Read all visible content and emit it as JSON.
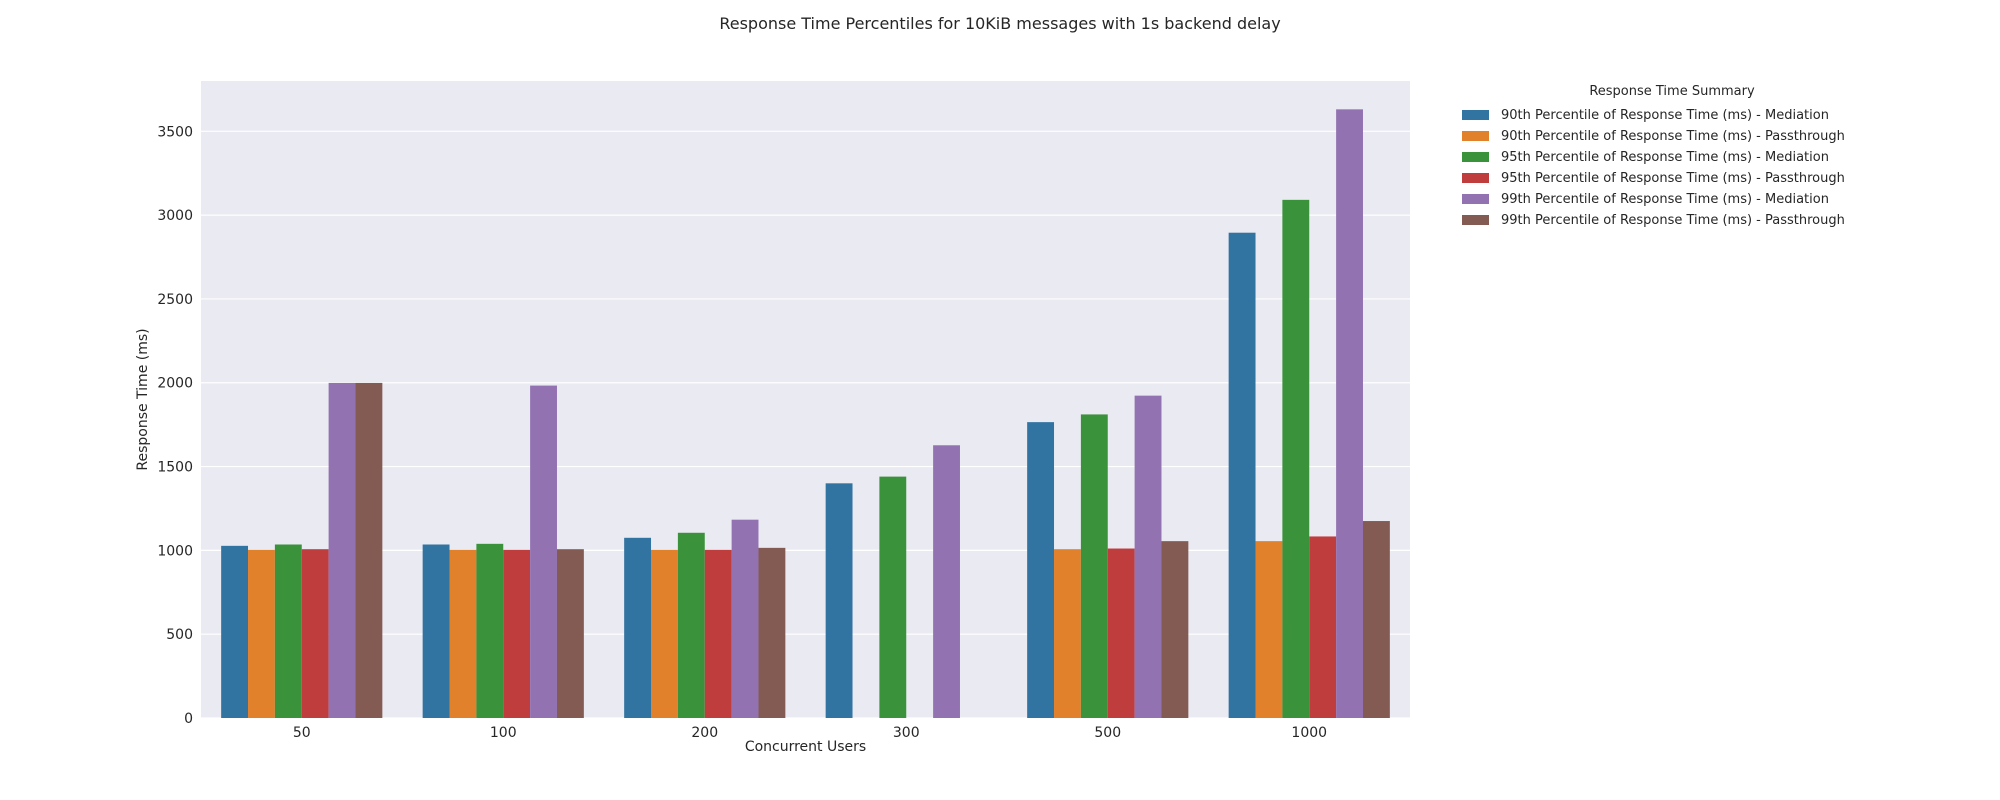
{
  "chart_data": {
    "type": "bar",
    "title": "Response Time Percentiles for 10KiB messages with 1s backend delay",
    "xlabel": "Concurrent Users",
    "ylabel": "Response Time (ms)",
    "ylim": [
      0,
      3800
    ],
    "yticks": [
      0,
      500,
      1000,
      1500,
      2000,
      2500,
      3000,
      3500
    ],
    "grid": true,
    "legend_title": "Response Time Summary",
    "legend_position": "outside-right",
    "categories": [
      "50",
      "100",
      "200",
      "300",
      "500",
      "1000"
    ],
    "series": [
      {
        "name": "90th Percentile of Response Time (ms) - Mediation",
        "color": "#3274a1",
        "values": [
          1027,
          1035,
          1075,
          1400,
          1765,
          2895
        ]
      },
      {
        "name": "90th Percentile of Response Time (ms) - Passthrough",
        "color": "#e1812c",
        "values": [
          1003,
          1003,
          1003,
          null,
          1007,
          1055
        ]
      },
      {
        "name": "95th Percentile of Response Time (ms) - Mediation",
        "color": "#3a923a",
        "values": [
          1035,
          1039,
          1105,
          1440,
          1811,
          3091
        ]
      },
      {
        "name": "95th Percentile of Response Time (ms) - Passthrough",
        "color": "#c03d3e",
        "values": [
          1007,
          1003,
          1003,
          null,
          1011,
          1083
        ]
      },
      {
        "name": "99th Percentile of Response Time (ms) - Mediation",
        "color": "#9372b2",
        "values": [
          1999,
          1983,
          1183,
          1627,
          1923,
          3631
        ]
      },
      {
        "name": "99th Percentile of Response Time (ms) - Passthrough",
        "color": "#845b53",
        "values": [
          1999,
          1007,
          1015,
          null,
          1055,
          1175
        ]
      }
    ]
  }
}
